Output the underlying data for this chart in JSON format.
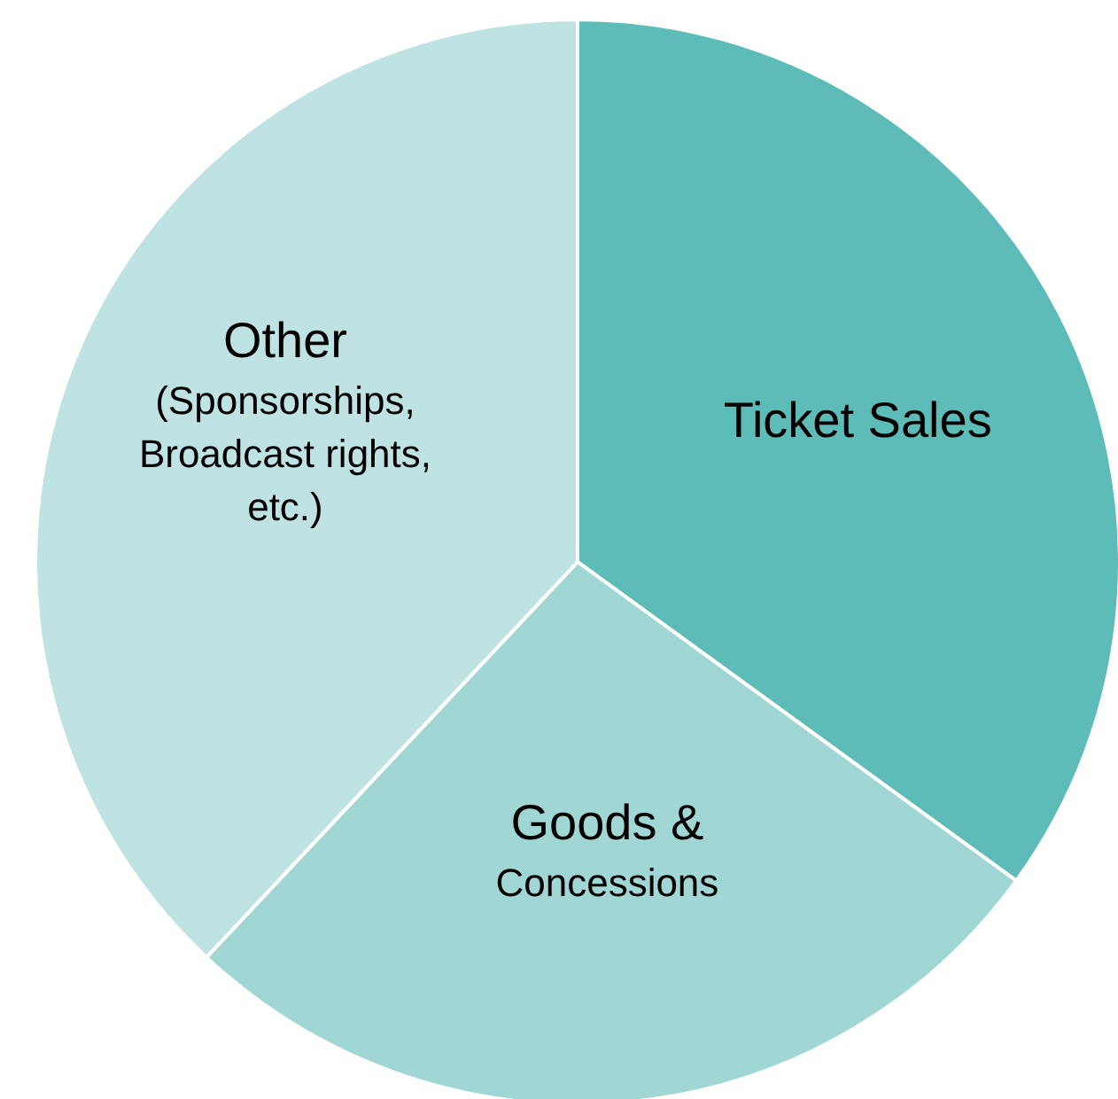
{
  "chart_data": {
    "type": "pie",
    "categories": [
      "Ticket Sales",
      "Goods & Concessions",
      "Other (Sponsorships, Broadcast rights, etc.)"
    ],
    "values": [
      35,
      27,
      38
    ],
    "colors": [
      "#5dbcb8",
      "#a0d7d5",
      "#bfe3e2"
    ]
  }
}
